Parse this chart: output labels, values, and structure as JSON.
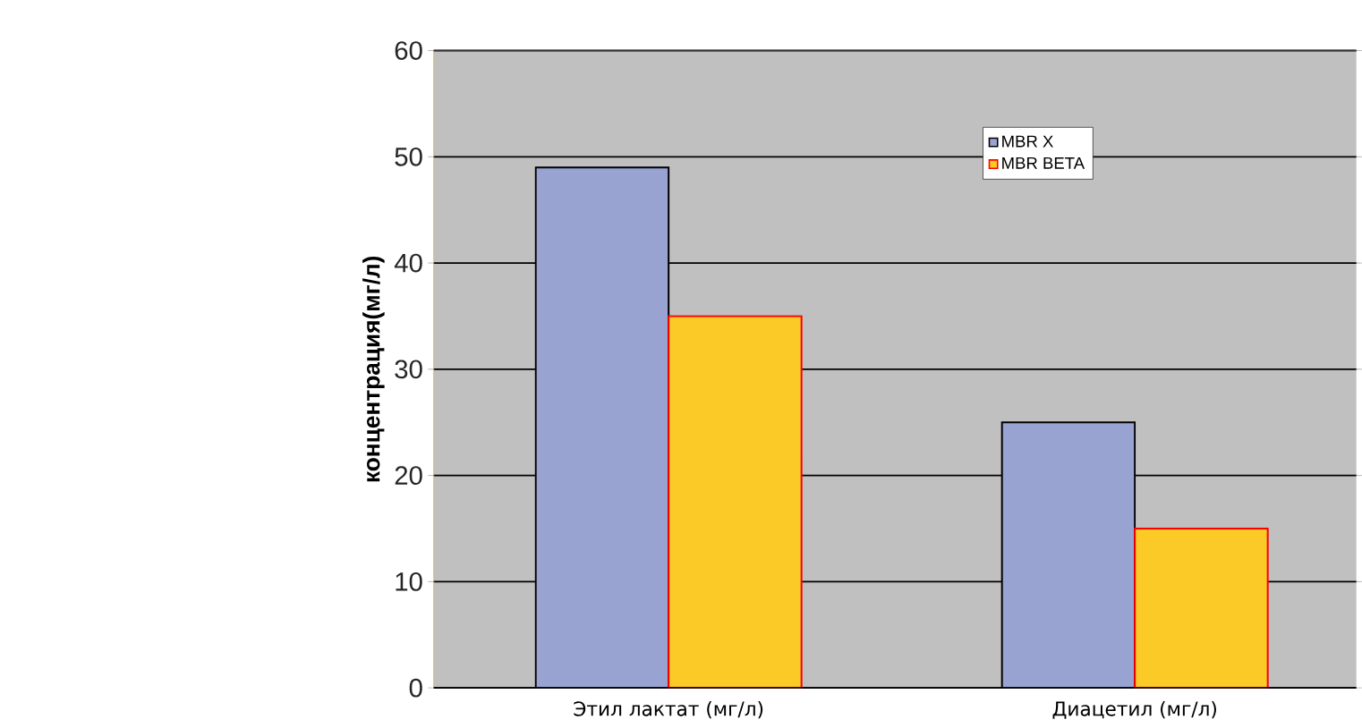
{
  "chart_data": {
    "type": "bar",
    "ylabel": "концентрация(мг/л)",
    "categories": [
      "Этил лактат  (мг/л)",
      "Диацетил (мг/л)"
    ],
    "series": [
      {
        "name": "MBR X",
        "color": "#99a3d2",
        "values": [
          49,
          25
        ]
      },
      {
        "name": "MBR BETA",
        "color": "#fbca27",
        "values": [
          35,
          15
        ]
      }
    ],
    "ylim": [
      0,
      60
    ],
    "yticks": [
      0,
      10,
      20,
      30,
      40,
      50,
      60
    ],
    "grid": "y",
    "legend": "top right"
  }
}
